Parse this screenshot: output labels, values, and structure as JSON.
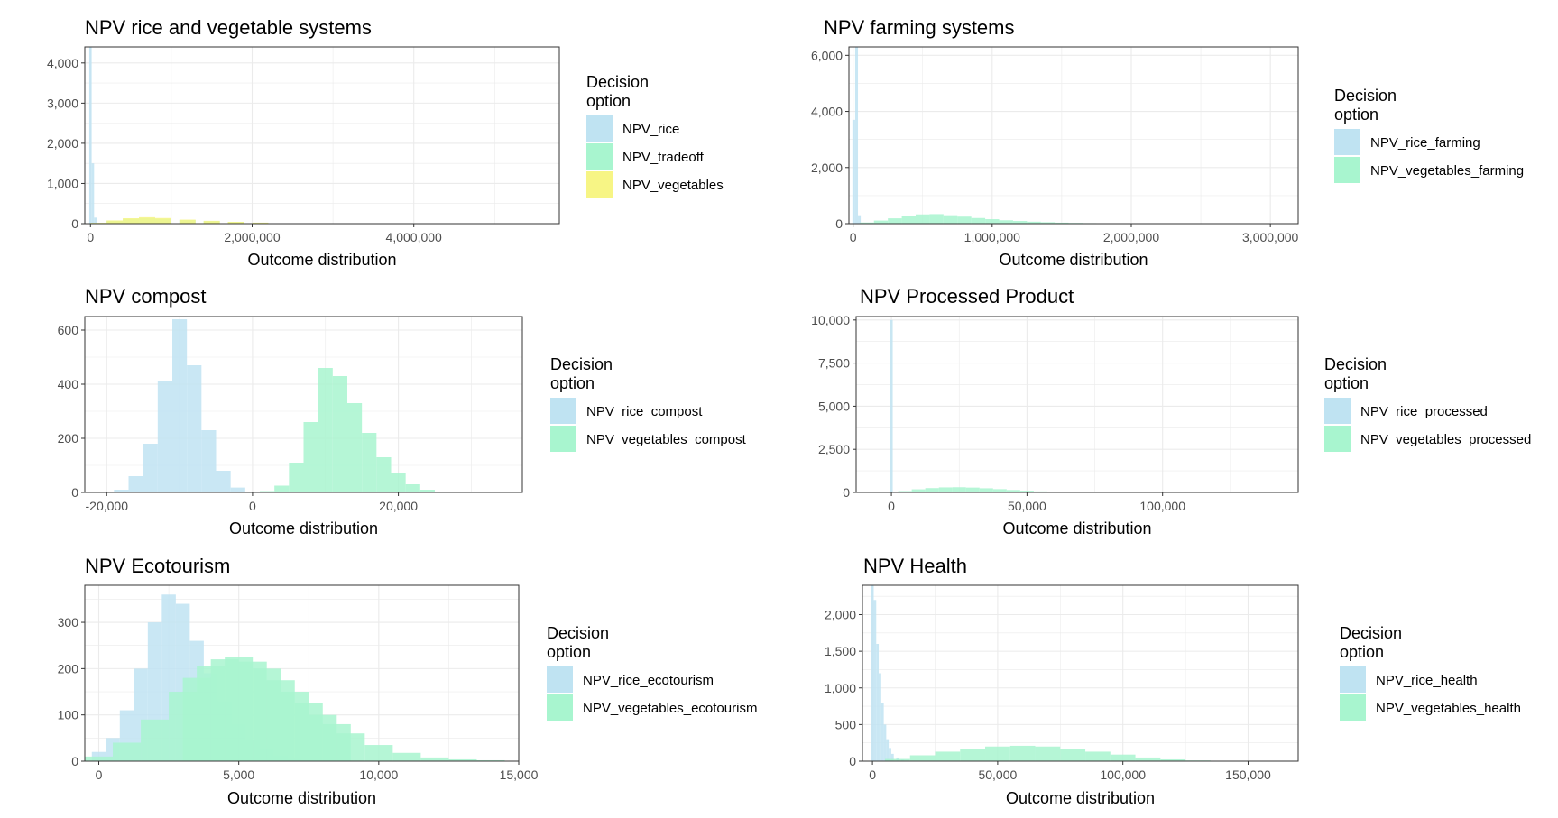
{
  "chart_data": [
    {
      "type": "histogram",
      "title": "NPV rice and vegetable systems",
      "xlabel": "Outcome distribution",
      "ylabel": "",
      "xlim": [
        -70000,
        5800000
      ],
      "ylim": [
        0,
        4400
      ],
      "xticks": [
        0,
        2000000,
        4000000
      ],
      "xtick_labels": [
        "0",
        "2,000,000",
        "4,000,000"
      ],
      "yticks": [
        0,
        1000,
        2000,
        3000,
        4000
      ],
      "ytick_labels": [
        "0",
        "1,000",
        "2,000",
        "3,000",
        "4,000"
      ],
      "grid": true,
      "legend_position": "right",
      "legend_title": "Decision\noption",
      "series": [
        {
          "name": "NPV_rice",
          "color": "#bfe3f2",
          "x": [
            0,
            30000,
            60000
          ],
          "values": [
            4400,
            1500,
            150
          ]
        },
        {
          "name": "NPV_tradeoff",
          "color": "#a8f5cf",
          "x": [
            100000,
            300000,
            500000,
            700000,
            900000,
            1200000,
            1500000,
            1800000,
            2100000,
            2500000
          ],
          "values": [
            15,
            70,
            120,
            140,
            120,
            90,
            65,
            40,
            20,
            8
          ]
        },
        {
          "name": "NPV_vegetables",
          "color": "#f7f585",
          "x": [
            100000,
            300000,
            500000,
            700000,
            900000,
            1200000,
            1500000,
            1800000,
            2100000,
            2500000
          ],
          "values": [
            20,
            80,
            135,
            160,
            140,
            100,
            70,
            45,
            25,
            10
          ]
        }
      ]
    },
    {
      "type": "histogram",
      "title": "NPV farming systems",
      "xlabel": "Outcome distribution",
      "ylabel": "",
      "xlim": [
        -30000,
        3200000
      ],
      "ylim": [
        0,
        6300
      ],
      "xticks": [
        0,
        1000000,
        2000000,
        3000000
      ],
      "xtick_labels": [
        "0",
        "1,000,000",
        "2,000,000",
        "3,000,000"
      ],
      "yticks": [
        0,
        2000,
        4000,
        6000
      ],
      "ytick_labels": [
        "0",
        "2,000",
        "4,000",
        "6,000"
      ],
      "grid": true,
      "legend_position": "right",
      "legend_title": "Decision\noption",
      "series": [
        {
          "name": "NPV_rice_farming",
          "color": "#bfe3f2",
          "x": [
            5000,
            25000,
            45000
          ],
          "values": [
            3700,
            6300,
            300
          ]
        },
        {
          "name": "NPV_vegetables_farming",
          "color": "#a8f5cf",
          "x": [
            100000,
            200000,
            300000,
            400000,
            500000,
            600000,
            700000,
            800000,
            900000,
            1000000,
            1100000,
            1200000,
            1300000,
            1400000,
            1500000,
            1600000,
            1700000,
            1800000,
            1900000
          ],
          "values": [
            40,
            110,
            190,
            270,
            330,
            340,
            300,
            250,
            200,
            160,
            120,
            95,
            70,
            50,
            35,
            25,
            18,
            12,
            8
          ]
        }
      ]
    },
    {
      "type": "histogram",
      "title": "NPV compost",
      "xlabel": "Outcome distribution",
      "ylabel": "",
      "xlim": [
        -23000,
        37000
      ],
      "ylim": [
        0,
        650
      ],
      "xticks": [
        -20000,
        0,
        20000
      ],
      "xtick_labels": [
        "-20,000",
        "0",
        "20,000"
      ],
      "yticks": [
        0,
        200,
        400,
        600
      ],
      "ytick_labels": [
        "0",
        "200",
        "400",
        "600"
      ],
      "grid": true,
      "legend_position": "right",
      "legend_title": "Decision\noption",
      "series": [
        {
          "name": "NPV_rice_compost",
          "color": "#bfe3f2",
          "x": [
            -20000,
            -18000,
            -16000,
            -14000,
            -12000,
            -10000,
            -8000,
            -6000,
            -4000,
            -2000,
            0
          ],
          "values": [
            2,
            10,
            60,
            180,
            410,
            640,
            470,
            230,
            80,
            18,
            3
          ]
        },
        {
          "name": "NPV_vegetables_compost",
          "color": "#a8f5cf",
          "x": [
            2000,
            4000,
            6000,
            8000,
            10000,
            12000,
            14000,
            16000,
            18000,
            20000,
            22000,
            24000,
            26000
          ],
          "values": [
            5,
            25,
            110,
            260,
            460,
            430,
            330,
            220,
            130,
            70,
            30,
            10,
            3
          ]
        }
      ]
    },
    {
      "type": "histogram",
      "title": "NPV Processed Product",
      "xlabel": "Outcome distribution",
      "ylabel": "",
      "xlim": [
        -13000,
        150000
      ],
      "ylim": [
        0,
        10200
      ],
      "xticks": [
        0,
        50000,
        100000
      ],
      "xtick_labels": [
        "0",
        "50,000",
        "100,000"
      ],
      "yticks": [
        0,
        2500,
        5000,
        7500,
        10000
      ],
      "ytick_labels": [
        "0",
        "2,500",
        "5,000",
        "7,500",
        "10,000"
      ],
      "grid": true,
      "legend_position": "right",
      "legend_title": "Decision\noption",
      "series": [
        {
          "name": "NPV_rice_processed",
          "color": "#bfe3f2",
          "x": [
            0
          ],
          "values": [
            10000
          ]
        },
        {
          "name": "NPV_vegetables_processed",
          "color": "#a8f5cf",
          "x": [
            5000,
            10000,
            15000,
            20000,
            25000,
            30000,
            35000,
            40000,
            45000,
            50000,
            55000,
            60000
          ],
          "values": [
            80,
            180,
            250,
            290,
            300,
            280,
            240,
            190,
            140,
            100,
            60,
            30
          ]
        }
      ]
    },
    {
      "type": "histogram",
      "title": "NPV Ecotourism",
      "xlabel": "Outcome distribution",
      "ylabel": "",
      "xlim": [
        -500,
        15000
      ],
      "ylim": [
        0,
        380
      ],
      "xticks": [
        0,
        5000,
        10000,
        15000
      ],
      "xtick_labels": [
        "0",
        "5,000",
        "10,000",
        "15,000"
      ],
      "yticks": [
        0,
        100,
        200,
        300
      ],
      "ytick_labels": [
        "0",
        "100",
        "200",
        "300"
      ],
      "grid": true,
      "legend_position": "right",
      "legend_title": "Decision\noption",
      "series": [
        {
          "name": "NPV_rice_ecotourism",
          "color": "#bfe3f2",
          "x": [
            0,
            500,
            1000,
            1500,
            2000,
            2500,
            3000,
            3500,
            4000,
            4500,
            5000,
            5500,
            6000,
            6500,
            7000
          ],
          "values": [
            20,
            50,
            110,
            200,
            300,
            360,
            340,
            260,
            190,
            130,
            80,
            45,
            25,
            12,
            5
          ]
        },
        {
          "name": "NPV_vegetables_ecotourism",
          "color": "#a8f5cf",
          "x": [
            0,
            1000,
            2000,
            3000,
            3500,
            4000,
            4500,
            5000,
            5500,
            6000,
            6500,
            7000,
            7500,
            8000,
            8500,
            9000,
            10000,
            11000,
            12000,
            13000,
            14000
          ],
          "values": [
            10,
            40,
            90,
            150,
            180,
            205,
            220,
            225,
            215,
            200,
            175,
            150,
            125,
            100,
            80,
            60,
            35,
            18,
            8,
            4,
            2
          ]
        }
      ]
    },
    {
      "type": "histogram",
      "title": "NPV Health",
      "xlabel": "Outcome distribution",
      "ylabel": "",
      "xlim": [
        -4000,
        170000
      ],
      "ylim": [
        0,
        2400
      ],
      "xticks": [
        0,
        50000,
        100000,
        150000
      ],
      "xtick_labels": [
        "0",
        "50,000",
        "100,000",
        "150,000"
      ],
      "yticks": [
        0,
        500,
        1000,
        1500,
        2000
      ],
      "ytick_labels": [
        "0",
        "500",
        "1,000",
        "1,500",
        "2,000"
      ],
      "grid": true,
      "legend_position": "right",
      "legend_title": "Decision\noption",
      "series": [
        {
          "name": "NPV_rice_health",
          "color": "#bfe3f2",
          "x": [
            0,
            1000,
            2000,
            3000,
            4000,
            5000,
            6000,
            7000,
            8000,
            10000,
            12000,
            14000
          ],
          "values": [
            2400,
            2200,
            1600,
            1200,
            800,
            500,
            300,
            180,
            100,
            50,
            20,
            8
          ]
        },
        {
          "name": "NPV_vegetables_health",
          "color": "#a8f5cf",
          "x": [
            10000,
            20000,
            30000,
            40000,
            50000,
            60000,
            70000,
            80000,
            90000,
            100000,
            110000,
            120000,
            130000
          ],
          "values": [
            30,
            80,
            130,
            170,
            200,
            210,
            200,
            170,
            130,
            90,
            50,
            25,
            10
          ]
        }
      ]
    }
  ]
}
